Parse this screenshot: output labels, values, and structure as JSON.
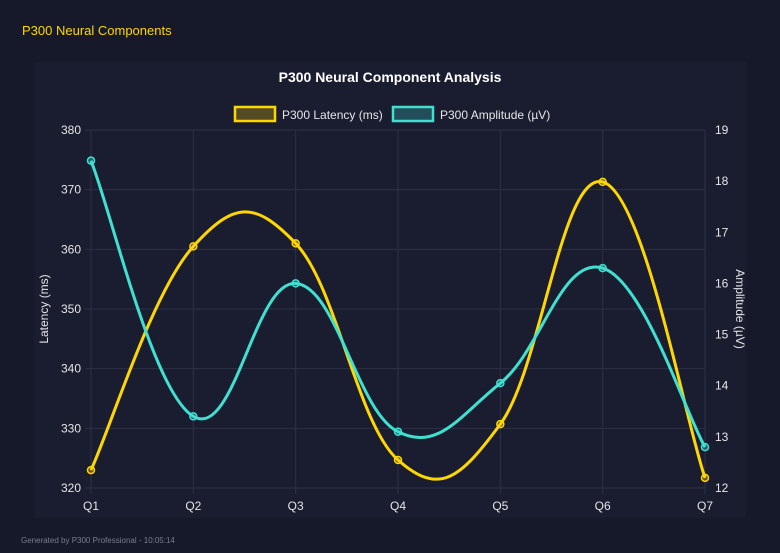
{
  "header": {
    "title": "P300 Neural Components"
  },
  "footer": {
    "text": "Generated by P300 Professional - 10:05:14"
  },
  "chart_data": {
    "type": "line",
    "title": "P300 Neural Component Analysis",
    "categories": [
      "Q1",
      "Q2",
      "Q3",
      "Q4",
      "Q5",
      "Q6",
      "Q7"
    ],
    "series": [
      {
        "name": "P300 Latency (ms)",
        "axis": "left",
        "color": "#ffd700",
        "values": [
          323.0,
          360.5,
          361.0,
          324.7,
          330.7,
          371.3,
          321.7
        ]
      },
      {
        "name": "P300 Amplitude (µV)",
        "axis": "right",
        "color": "#40e0d0",
        "values": [
          18.4,
          13.4,
          16.0,
          13.1,
          14.05,
          16.3,
          12.8
        ]
      }
    ],
    "ylabel": "Latency (ms)",
    "y2label": "Amplitude (µV)",
    "ylim": [
      320,
      380
    ],
    "yticks": [
      "320",
      "330",
      "340",
      "350",
      "360",
      "370",
      "380"
    ],
    "y2lim": [
      12,
      19
    ],
    "y2ticks": [
      "12",
      "13",
      "14",
      "15",
      "16",
      "17",
      "18",
      "19"
    ],
    "grid": true,
    "legend": "top-center",
    "smooth": true
  }
}
